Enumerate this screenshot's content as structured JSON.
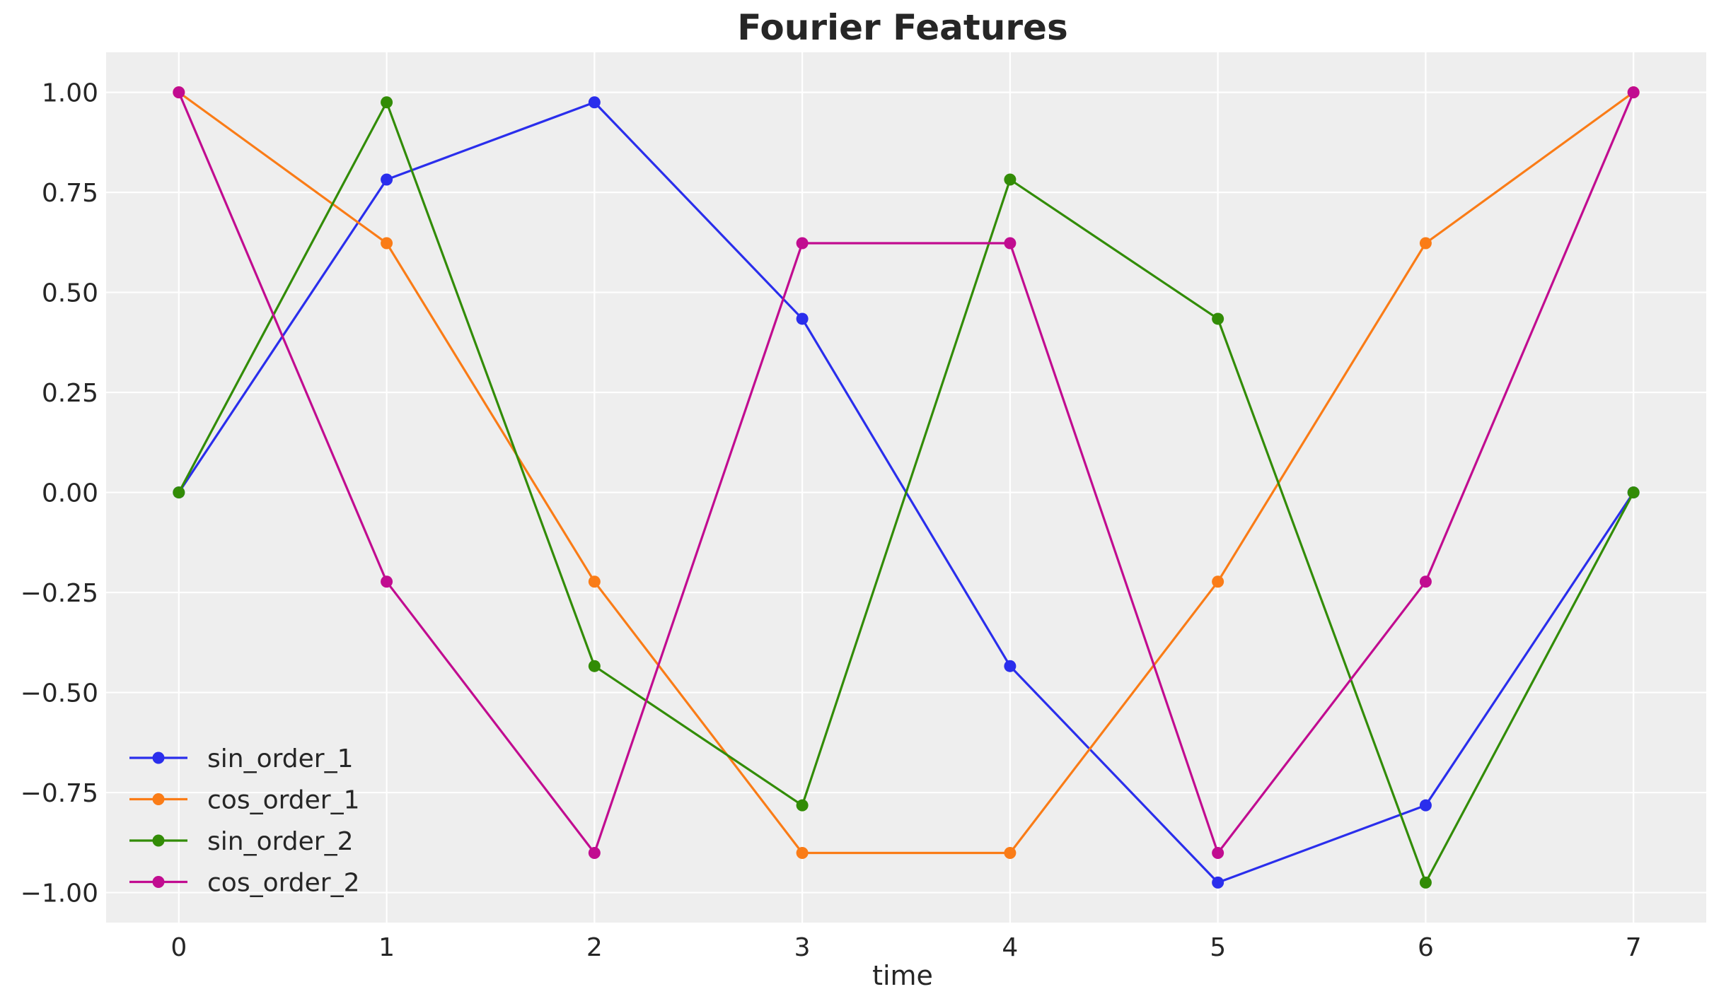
{
  "chart_data": {
    "type": "line",
    "title": "Fourier Features",
    "xlabel": "time",
    "ylabel": "",
    "x": [
      0,
      1,
      2,
      3,
      4,
      5,
      6,
      7
    ],
    "xlim": [
      -0.35,
      7.35
    ],
    "ylim": [
      -1.075,
      1.1
    ],
    "xticks": [
      0,
      1,
      2,
      3,
      4,
      5,
      6,
      7
    ],
    "xtick_labels": [
      "0",
      "1",
      "2",
      "3",
      "4",
      "5",
      "6",
      "7"
    ],
    "yticks": [
      1.0,
      0.75,
      0.5,
      0.25,
      0.0,
      -0.25,
      -0.5,
      -0.75,
      -1.0
    ],
    "ytick_labels": [
      "1.00",
      "0.75",
      "0.50",
      "0.25",
      "0.00",
      "−0.25",
      "−0.50",
      "−0.75",
      "−1.00"
    ],
    "grid": true,
    "background": "#eeeeee",
    "legend_position": "bottom-left",
    "series": [
      {
        "name": "sin_order_1",
        "color": "#2a2eec",
        "values": [
          0.0,
          0.782,
          0.975,
          0.434,
          -0.434,
          -0.975,
          -0.782,
          0.0
        ]
      },
      {
        "name": "cos_order_1",
        "color": "#fa7c17",
        "values": [
          1.0,
          0.623,
          -0.223,
          -0.901,
          -0.901,
          -0.223,
          0.623,
          1.0
        ]
      },
      {
        "name": "sin_order_2",
        "color": "#328c06",
        "values": [
          0.0,
          0.975,
          -0.434,
          -0.782,
          0.782,
          0.434,
          -0.975,
          0.0
        ]
      },
      {
        "name": "cos_order_2",
        "color": "#c10c90",
        "values": [
          1.0,
          -0.223,
          -0.901,
          0.623,
          0.623,
          -0.901,
          -0.223,
          1.0
        ]
      }
    ]
  }
}
